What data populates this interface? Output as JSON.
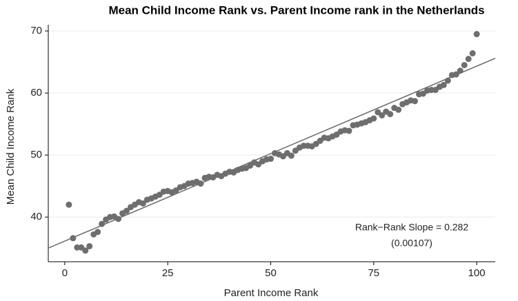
{
  "chart_data": {
    "type": "scatter",
    "title": "Mean Child Income Rank vs. Parent Income rank in the Netherlands",
    "x_label": "Parent Income Rank",
    "y_label": "Mean Child Income Rank",
    "annotation": [
      "Rank−Rank Slope = 0.282",
      "(0.00107)"
    ],
    "x": [
      1,
      2,
      3,
      4,
      5,
      6,
      7,
      8,
      9,
      10,
      11,
      12,
      13,
      14,
      15,
      16,
      17,
      18,
      19,
      20,
      21,
      22,
      23,
      24,
      25,
      26,
      27,
      28,
      29,
      30,
      31,
      32,
      33,
      34,
      35,
      36,
      37,
      38,
      39,
      40,
      41,
      42,
      43,
      44,
      45,
      46,
      47,
      48,
      49,
      50,
      51,
      52,
      53,
      54,
      55,
      56,
      57,
      58,
      59,
      60,
      61,
      62,
      63,
      64,
      65,
      66,
      67,
      68,
      69,
      70,
      71,
      72,
      73,
      74,
      75,
      76,
      77,
      78,
      79,
      80,
      81,
      82,
      83,
      84,
      85,
      86,
      87,
      88,
      89,
      90,
      91,
      92,
      93,
      94,
      95,
      96,
      97,
      98,
      99,
      100
    ],
    "values": [
      42.0,
      36.6,
      35.1,
      35.1,
      34.6,
      35.3,
      37.2,
      37.6,
      38.9,
      39.6,
      40.0,
      40.1,
      39.7,
      40.6,
      41.0,
      41.6,
      42.0,
      42.4,
      42.2,
      42.8,
      43.0,
      43.3,
      43.6,
      44.1,
      44.2,
      44.0,
      44.3,
      44.8,
      45.0,
      45.4,
      45.5,
      45.7,
      45.4,
      46.3,
      46.5,
      46.4,
      46.8,
      46.6,
      47.0,
      47.3,
      47.2,
      47.6,
      47.8,
      47.9,
      48.3,
      48.8,
      48.5,
      49.0,
      49.3,
      49.4,
      50.3,
      50.1,
      49.8,
      50.3,
      49.9,
      50.7,
      51.2,
      51.5,
      51.5,
      51.4,
      51.8,
      52.3,
      52.8,
      52.7,
      53.0,
      53.3,
      53.8,
      54.0,
      53.9,
      54.8,
      54.9,
      55.1,
      55.3,
      55.6,
      55.9,
      56.9,
      56.4,
      57.0,
      56.6,
      57.6,
      57.3,
      58.2,
      58.5,
      58.8,
      58.7,
      59.8,
      59.9,
      60.4,
      60.5,
      60.5,
      61.0,
      61.3,
      62.0,
      62.9,
      63.0,
      63.6,
      64.5,
      65.5,
      66.4,
      69.5
    ],
    "color": "#6e6e6e",
    "fit_line": {
      "x": [
        -4,
        104.5
      ],
      "y": [
        35.0,
        65.6
      ],
      "color": "#6e6e6e"
    },
    "xlim": [
      -4,
      104.5
    ],
    "ylim": [
      32.8,
      71
    ],
    "xticks": [
      0,
      25,
      50,
      75,
      100
    ],
    "yticks": [
      40,
      50,
      60,
      70
    ],
    "grid": true
  }
}
